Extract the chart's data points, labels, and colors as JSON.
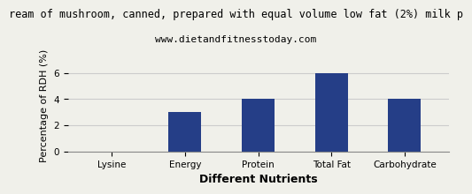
{
  "title_line1": "ream of mushroom, canned, prepared with equal volume low fat (2%) milk p",
  "title_line2": "www.dietandfitnesstoday.com",
  "categories": [
    "Lysine",
    "Energy",
    "Protein",
    "Total Fat",
    "Carbohydrate"
  ],
  "values": [
    0,
    3,
    4,
    6,
    4
  ],
  "bar_color": "#253e87",
  "xlabel": "Different Nutrients",
  "ylabel": "Percentage of RDH (%)",
  "ylim": [
    0,
    7
  ],
  "yticks": [
    0,
    2,
    4,
    6
  ],
  "background_color": "#f0f0ea",
  "plot_bg_color": "#f0f0ea",
  "grid_color": "#cccccc",
  "title_fontsize": 8.5,
  "subtitle_fontsize": 8,
  "axis_label_fontsize": 8,
  "tick_fontsize": 7.5,
  "xlabel_fontsize": 9
}
